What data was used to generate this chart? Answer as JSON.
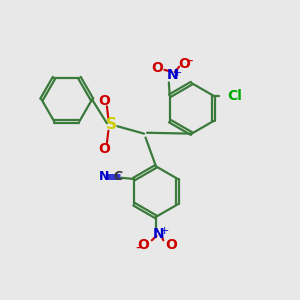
{
  "bg_color": "#e8e8e8",
  "bond_color": "#3a7a3a",
  "S_color": "#cccc00",
  "N_color_blue": "#0000cc",
  "O_color_red": "#cc0000",
  "Cl_color": "#00aa00",
  "C_color": "#333333",
  "figsize": [
    3.0,
    3.0
  ],
  "dpi": 100,
  "xlim": [
    0,
    10
  ],
  "ylim": [
    0,
    10
  ]
}
